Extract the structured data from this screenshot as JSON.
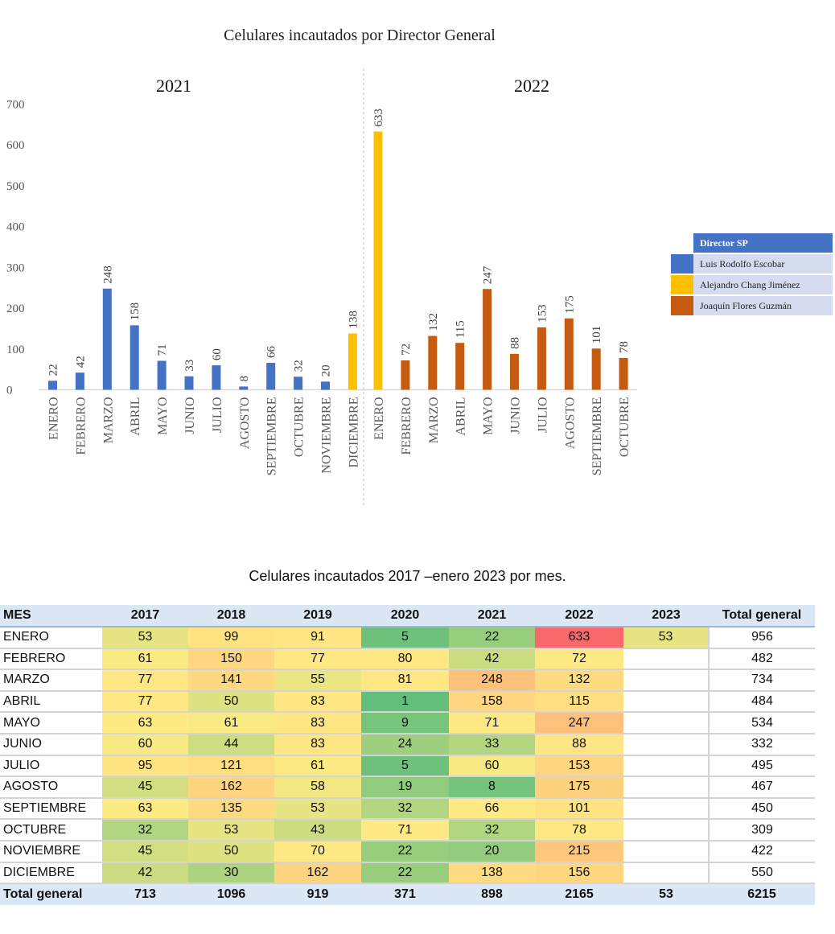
{
  "chart_data": {
    "type": "bar",
    "title": "Celulares incautados por Director General",
    "ylim": [
      0,
      700
    ],
    "yticks": [
      0,
      100,
      200,
      300,
      400,
      500,
      600,
      700
    ],
    "grid": false,
    "legend_position": "right",
    "legend_title": "Director SP",
    "directors": [
      {
        "name": "Luis Rodolfo Escobar",
        "color": "#4472c4"
      },
      {
        "name": "Alejandro Chang Jiménez",
        "color": "#ffc000"
      },
      {
        "name": "Joaquín Flores Guzmán",
        "color": "#c55a11"
      }
    ],
    "groups": [
      {
        "year": "2021",
        "categories": [
          "ENERO",
          "FEBRERO",
          "MARZO",
          "ABRIL",
          "MAYO",
          "JUNIO",
          "JULIO",
          "AGOSTO",
          "SEPTIEMBRE",
          "OCTUBRE",
          "NOVIEMBRE",
          "DICIEMBRE"
        ],
        "values": [
          22,
          42,
          248,
          158,
          71,
          33,
          60,
          8,
          66,
          32,
          20,
          138
        ],
        "director": [
          0,
          0,
          0,
          0,
          0,
          0,
          0,
          0,
          0,
          0,
          0,
          1
        ]
      },
      {
        "year": "2022",
        "categories": [
          "ENERO",
          "FEBRERO",
          "MARZO",
          "ABRIL",
          "MAYO",
          "JUNIO",
          "JULIO",
          "AGOSTO",
          "SEPTIEMBRE",
          "OCTUBRE"
        ],
        "values": [
          633,
          72,
          132,
          115,
          247,
          88,
          153,
          175,
          101,
          78
        ],
        "director": [
          1,
          2,
          2,
          2,
          2,
          2,
          2,
          2,
          2,
          2
        ]
      }
    ]
  },
  "table": {
    "title": "Celulares incautados 2017 –enero 2023 por mes.",
    "headers": [
      "MES",
      "2017",
      "2018",
      "2019",
      "2020",
      "2021",
      "2022",
      "2023",
      "Total general"
    ],
    "rows": [
      {
        "mes": "ENERO",
        "values": [
          "53",
          "99",
          "91",
          "5",
          "22",
          "633",
          "53"
        ],
        "total": "956"
      },
      {
        "mes": "FEBRERO",
        "values": [
          "61",
          "150",
          "77",
          "80",
          "42",
          "72",
          ""
        ],
        "total": "482"
      },
      {
        "mes": "MARZO",
        "values": [
          "77",
          "141",
          "55",
          "81",
          "248",
          "132",
          ""
        ],
        "total": "734"
      },
      {
        "mes": "ABRIL",
        "values": [
          "77",
          "50",
          "83",
          "1",
          "158",
          "115",
          ""
        ],
        "total": "484"
      },
      {
        "mes": "MAYO",
        "values": [
          "63",
          "61",
          "83",
          "9",
          "71",
          "247",
          ""
        ],
        "total": "534"
      },
      {
        "mes": "JUNIO",
        "values": [
          "60",
          "44",
          "83",
          "24",
          "33",
          "88",
          ""
        ],
        "total": "332"
      },
      {
        "mes": "JULIO",
        "values": [
          "95",
          "121",
          "61",
          "5",
          "60",
          "153",
          ""
        ],
        "total": "495"
      },
      {
        "mes": "AGOSTO",
        "values": [
          "45",
          "162",
          "58",
          "19",
          "8",
          "175",
          ""
        ],
        "total": "467"
      },
      {
        "mes": "SEPTIEMBRE",
        "values": [
          "63",
          "135",
          "53",
          "32",
          "66",
          "101",
          ""
        ],
        "total": "450"
      },
      {
        "mes": "OCTUBRE",
        "values": [
          "32",
          "53",
          "43",
          "71",
          "32",
          "78",
          ""
        ],
        "total": "309"
      },
      {
        "mes": "NOVIEMBRE",
        "values": [
          "45",
          "50",
          "70",
          "22",
          "20",
          "215",
          ""
        ],
        "total": "422"
      },
      {
        "mes": "DICIEMBRE",
        "values": [
          "42",
          "30",
          "162",
          "22",
          "138",
          "156",
          ""
        ],
        "total": "550"
      }
    ],
    "totals": {
      "label": "Total general",
      "values": [
        "713",
        "1096",
        "919",
        "371",
        "898",
        "2165",
        "53"
      ],
      "total": "6215"
    },
    "heat_colors": {
      "low": "#63be7b",
      "mid": "#ffeb84",
      "high": "#f8696b"
    }
  }
}
